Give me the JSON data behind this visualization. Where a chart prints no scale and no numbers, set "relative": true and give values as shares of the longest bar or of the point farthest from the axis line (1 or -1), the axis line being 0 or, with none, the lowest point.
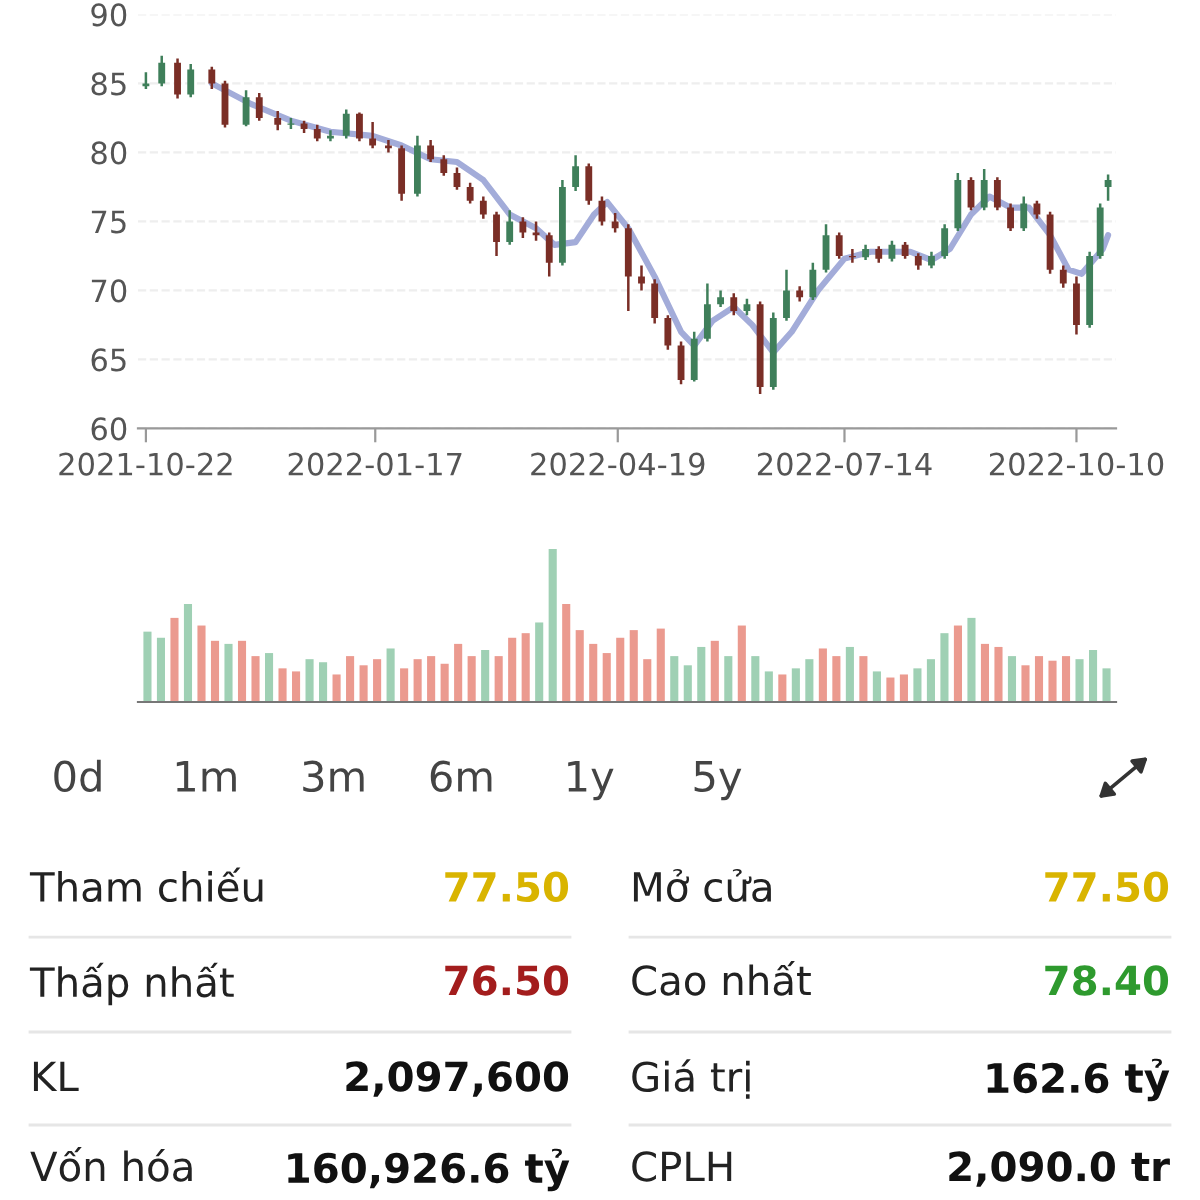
{
  "chart_data": [
    {
      "type": "candlestick",
      "xlim": [
        "2021-10-19",
        "2022-10-25"
      ],
      "ylim": [
        60,
        90
      ],
      "yticks": [
        60,
        65,
        70,
        75,
        80,
        85,
        90
      ],
      "xticks": [
        "2021-10-22",
        "2022-01-17",
        "2022-04-19",
        "2022-07-14",
        "2022-10-10"
      ],
      "grid": "y",
      "x": [
        "2021-10-22",
        "2021-10-28",
        "2021-11-03",
        "2021-11-08",
        "2021-11-16",
        "2021-11-21",
        "2021-11-29",
        "2021-12-04",
        "2021-12-11",
        "2021-12-16",
        "2021-12-21",
        "2021-12-26",
        "2021-12-31",
        "2022-01-06",
        "2022-01-11",
        "2022-01-16",
        "2022-01-22",
        "2022-01-27",
        "2022-02-02",
        "2022-02-07",
        "2022-02-12",
        "2022-02-17",
        "2022-02-22",
        "2022-02-27",
        "2022-03-04",
        "2022-03-09",
        "2022-03-14",
        "2022-03-19",
        "2022-03-24",
        "2022-03-29",
        "2022-04-03",
        "2022-04-08",
        "2022-04-13",
        "2022-04-18",
        "2022-04-23",
        "2022-04-28",
        "2022-05-03",
        "2022-05-08",
        "2022-05-13",
        "2022-05-18",
        "2022-05-23",
        "2022-05-28",
        "2022-06-02",
        "2022-06-07",
        "2022-06-12",
        "2022-06-17",
        "2022-06-22",
        "2022-06-27",
        "2022-07-02",
        "2022-07-07",
        "2022-07-12",
        "2022-07-17",
        "2022-07-22",
        "2022-07-27",
        "2022-08-01",
        "2022-08-06",
        "2022-08-11",
        "2022-08-16",
        "2022-08-21",
        "2022-08-26",
        "2022-08-31",
        "2022-09-05",
        "2022-09-10",
        "2022-09-15",
        "2022-09-20",
        "2022-09-25",
        "2022-09-30",
        "2022-10-05",
        "2022-10-10",
        "2022-10-15",
        "2022-10-19",
        "2022-10-22"
      ],
      "ohlc": [
        [
          84.8,
          85.8,
          84.6,
          85.0
        ],
        [
          85.0,
          87.0,
          84.8,
          86.5
        ],
        [
          86.5,
          86.8,
          83.9,
          84.2
        ],
        [
          84.2,
          86.4,
          84.0,
          86.0
        ],
        [
          86.0,
          86.2,
          84.6,
          85.0
        ],
        [
          85.0,
          85.2,
          81.8,
          82.0
        ],
        [
          82.0,
          84.5,
          81.9,
          84.0
        ],
        [
          84.0,
          84.3,
          82.3,
          82.5
        ],
        [
          82.5,
          83.0,
          81.6,
          82.0
        ],
        [
          82.0,
          82.5,
          81.7,
          82.1
        ],
        [
          82.1,
          82.3,
          81.4,
          81.7
        ],
        [
          81.7,
          82.0,
          80.8,
          81.0
        ],
        [
          81.0,
          81.6,
          80.8,
          81.2
        ],
        [
          81.2,
          83.1,
          81.0,
          82.8
        ],
        [
          82.8,
          82.9,
          80.8,
          81.0
        ],
        [
          81.0,
          82.2,
          80.3,
          80.5
        ],
        [
          80.5,
          80.9,
          80.0,
          80.3
        ],
        [
          80.3,
          80.5,
          76.5,
          77.0
        ],
        [
          77.0,
          81.2,
          76.8,
          80.5
        ],
        [
          80.5,
          80.9,
          79.3,
          79.5
        ],
        [
          79.5,
          79.8,
          78.3,
          78.5
        ],
        [
          78.5,
          78.9,
          77.3,
          77.5
        ],
        [
          77.5,
          77.8,
          76.3,
          76.5
        ],
        [
          76.5,
          76.8,
          75.2,
          75.5
        ],
        [
          75.5,
          75.7,
          72.5,
          73.5
        ],
        [
          73.5,
          75.8,
          73.3,
          75.0
        ],
        [
          75.0,
          75.3,
          73.8,
          74.2
        ],
        [
          74.2,
          75.0,
          73.6,
          74.0
        ],
        [
          74.0,
          74.2,
          71.0,
          72.0
        ],
        [
          72.0,
          78.0,
          71.8,
          77.5
        ],
        [
          77.5,
          79.8,
          77.2,
          79.0
        ],
        [
          79.0,
          79.2,
          76.2,
          76.5
        ],
        [
          76.5,
          76.8,
          74.7,
          75.0
        ],
        [
          75.0,
          75.6,
          74.2,
          74.5
        ],
        [
          74.5,
          74.8,
          68.5,
          71.0
        ],
        [
          71.0,
          71.8,
          70.0,
          70.5
        ],
        [
          70.5,
          70.8,
          67.6,
          68.0
        ],
        [
          68.0,
          68.2,
          65.7,
          66.0
        ],
        [
          66.0,
          66.3,
          63.2,
          63.5
        ],
        [
          63.5,
          67.0,
          63.4,
          66.5
        ],
        [
          66.5,
          70.5,
          66.3,
          69.0
        ],
        [
          69.0,
          70.0,
          68.8,
          69.5
        ],
        [
          69.5,
          69.8,
          68.2,
          68.5
        ],
        [
          68.5,
          69.4,
          68.2,
          69.0
        ],
        [
          69.0,
          69.2,
          62.5,
          63.0
        ],
        [
          63.0,
          68.4,
          62.8,
          68.0
        ],
        [
          68.0,
          71.5,
          67.8,
          70.0
        ],
        [
          70.0,
          70.3,
          69.2,
          69.5
        ],
        [
          69.5,
          72.0,
          69.3,
          71.5
        ],
        [
          71.5,
          74.8,
          71.3,
          74.0
        ],
        [
          74.0,
          74.2,
          72.3,
          72.5
        ],
        [
          72.5,
          73.0,
          72.0,
          72.4
        ],
        [
          72.4,
          73.3,
          72.2,
          73.0
        ],
        [
          73.0,
          73.2,
          72.0,
          72.3
        ],
        [
          72.3,
          73.6,
          72.1,
          73.3
        ],
        [
          73.3,
          73.5,
          72.3,
          72.5
        ],
        [
          72.5,
          72.7,
          71.5,
          71.8
        ],
        [
          71.8,
          72.8,
          71.6,
          72.5
        ],
        [
          72.5,
          74.8,
          72.3,
          74.5
        ],
        [
          74.5,
          78.5,
          74.3,
          78.0
        ],
        [
          78.0,
          78.2,
          75.8,
          76.0
        ],
        [
          76.0,
          78.8,
          75.8,
          78.0
        ],
        [
          78.0,
          78.2,
          75.8,
          76.0
        ],
        [
          76.0,
          76.3,
          74.3,
          74.5
        ],
        [
          74.5,
          76.8,
          74.3,
          76.3
        ],
        [
          76.3,
          76.5,
          75.2,
          75.5
        ],
        [
          75.5,
          75.7,
          71.2,
          71.5
        ],
        [
          71.5,
          71.8,
          70.2,
          70.5
        ],
        [
          70.5,
          71.0,
          66.8,
          67.5
        ],
        [
          67.5,
          72.8,
          67.3,
          72.5
        ],
        [
          72.5,
          76.3,
          72.3,
          76.0
        ],
        [
          77.5,
          78.4,
          76.5,
          78.0
        ]
      ],
      "colors": [
        "#3f7f5a",
        "#3f7f5a",
        "#7a2e26",
        "#3f7f5a",
        "#7a2e26",
        "#7a2e26",
        "#3f7f5a",
        "#7a2e26",
        "#7a2e26",
        "#3f7f5a",
        "#7a2e26",
        "#7a2e26",
        "#3f7f5a",
        "#3f7f5a",
        "#7a2e26",
        "#7a2e26",
        "#7a2e26",
        "#7a2e26",
        "#3f7f5a",
        "#7a2e26",
        "#7a2e26",
        "#7a2e26",
        "#7a2e26",
        "#7a2e26",
        "#7a2e26",
        "#3f7f5a",
        "#7a2e26",
        "#7a2e26",
        "#7a2e26",
        "#3f7f5a",
        "#3f7f5a",
        "#7a2e26",
        "#7a2e26",
        "#7a2e26",
        "#7a2e26",
        "#7a2e26",
        "#7a2e26",
        "#7a2e26",
        "#7a2e26",
        "#3f7f5a",
        "#3f7f5a",
        "#3f7f5a",
        "#7a2e26",
        "#3f7f5a",
        "#7a2e26",
        "#3f7f5a",
        "#3f7f5a",
        "#7a2e26",
        "#3f7f5a",
        "#3f7f5a",
        "#7a2e26",
        "#7a2e26",
        "#3f7f5a",
        "#7a2e26",
        "#3f7f5a",
        "#7a2e26",
        "#7a2e26",
        "#3f7f5a",
        "#3f7f5a",
        "#3f7f5a",
        "#7a2e26",
        "#3f7f5a",
        "#7a2e26",
        "#7a2e26",
        "#3f7f5a",
        "#7a2e26",
        "#7a2e26",
        "#7a2e26",
        "#7a2e26",
        "#3f7f5a",
        "#3f7f5a",
        "#3f7f5a"
      ],
      "series": [
        {
          "type": "line",
          "color": "#a3acd9",
          "x": [
            "2021-11-16",
            "2021-12-01",
            "2021-12-16",
            "2021-12-31",
            "2022-01-16",
            "2022-01-27",
            "2022-02-07",
            "2022-02-17",
            "2022-02-27",
            "2022-03-09",
            "2022-03-19",
            "2022-03-26",
            "2022-04-03",
            "2022-04-10",
            "2022-04-15",
            "2022-04-23",
            "2022-05-03",
            "2022-05-13",
            "2022-05-18",
            "2022-05-25",
            "2022-06-02",
            "2022-06-09",
            "2022-06-17",
            "2022-06-24",
            "2022-07-04",
            "2022-07-14",
            "2022-07-24",
            "2022-08-08",
            "2022-08-16",
            "2022-08-23",
            "2022-08-31",
            "2022-09-07",
            "2022-09-15",
            "2022-09-22",
            "2022-09-30",
            "2022-10-07",
            "2022-10-12",
            "2022-10-20",
            "2022-10-22"
          ],
          "values": [
            85.0,
            83.5,
            82.3,
            81.5,
            81.2,
            80.5,
            79.5,
            79.3,
            78.0,
            75.5,
            74.5,
            73.3,
            73.5,
            75.5,
            76.4,
            74.5,
            71.0,
            67.0,
            66.0,
            67.8,
            68.8,
            67.5,
            65.5,
            67.0,
            70.0,
            72.3,
            72.8,
            72.8,
            72.2,
            73.0,
            75.5,
            76.8,
            76.0,
            76.0,
            74.0,
            71.5,
            71.2,
            73.0,
            74.0
          ]
        }
      ]
    },
    {
      "type": "bar",
      "relative": true,
      "categories": [
        null,
        null,
        null,
        null,
        null,
        null,
        null,
        null,
        null,
        null,
        null,
        null,
        null,
        null,
        null,
        null,
        null,
        null,
        null,
        null,
        null,
        null,
        null,
        null,
        null,
        null,
        null,
        null,
        null,
        null,
        null,
        null,
        null,
        null,
        null,
        null,
        null,
        null,
        null,
        null,
        null,
        null,
        null,
        null,
        null,
        null,
        null,
        null,
        null,
        null,
        null,
        null,
        null,
        null,
        null,
        null,
        null,
        null,
        null,
        null,
        null,
        null,
        null,
        null,
        null,
        null,
        null,
        null,
        null,
        null,
        null,
        null
      ],
      "values": [
        0.46,
        0.42,
        0.55,
        0.64,
        0.5,
        0.4,
        0.38,
        0.4,
        0.3,
        0.32,
        0.22,
        0.2,
        0.28,
        0.26,
        0.18,
        0.3,
        0.24,
        0.28,
        0.35,
        0.22,
        0.28,
        0.3,
        0.25,
        0.38,
        0.3,
        0.34,
        0.3,
        0.42,
        0.45,
        0.52,
        1.0,
        0.64,
        0.47,
        0.38,
        0.32,
        0.42,
        0.47,
        0.28,
        0.48,
        0.3,
        0.24,
        0.36,
        0.4,
        0.3,
        0.5,
        0.3,
        0.2,
        0.18,
        0.22,
        0.28,
        0.35,
        0.3,
        0.36,
        0.3,
        0.2,
        0.16,
        0.18,
        0.22,
        0.28,
        0.45,
        0.5,
        0.55,
        0.38,
        0.36,
        0.3,
        0.24,
        0.3,
        0.27,
        0.3,
        0.28,
        0.34,
        0.22
      ],
      "colors": [
        "#9fd0b4",
        "#9fd0b4",
        "#eb9a8f",
        "#9fd0b4",
        "#eb9a8f",
        "#eb9a8f",
        "#9fd0b4",
        "#eb9a8f",
        "#eb9a8f",
        "#9fd0b4",
        "#eb9a8f",
        "#eb9a8f",
        "#9fd0b4",
        "#9fd0b4",
        "#eb9a8f",
        "#eb9a8f",
        "#eb9a8f",
        "#eb9a8f",
        "#9fd0b4",
        "#eb9a8f",
        "#eb9a8f",
        "#eb9a8f",
        "#eb9a8f",
        "#eb9a8f",
        "#eb9a8f",
        "#9fd0b4",
        "#eb9a8f",
        "#eb9a8f",
        "#eb9a8f",
        "#9fd0b4",
        "#9fd0b4",
        "#eb9a8f",
        "#eb9a8f",
        "#eb9a8f",
        "#eb9a8f",
        "#eb9a8f",
        "#eb9a8f",
        "#eb9a8f",
        "#eb9a8f",
        "#9fd0b4",
        "#9fd0b4",
        "#9fd0b4",
        "#eb9a8f",
        "#9fd0b4",
        "#eb9a8f",
        "#9fd0b4",
        "#9fd0b4",
        "#eb9a8f",
        "#9fd0b4",
        "#9fd0b4",
        "#eb9a8f",
        "#eb9a8f",
        "#9fd0b4",
        "#eb9a8f",
        "#9fd0b4",
        "#eb9a8f",
        "#eb9a8f",
        "#9fd0b4",
        "#9fd0b4",
        "#9fd0b4",
        "#eb9a8f",
        "#9fd0b4",
        "#eb9a8f",
        "#eb9a8f",
        "#9fd0b4",
        "#eb9a8f",
        "#eb9a8f",
        "#eb9a8f",
        "#eb9a8f",
        "#9fd0b4",
        "#9fd0b4",
        "#9fd0b4"
      ]
    },
    {
      "type": "other",
      "annotations": [
        "0d",
        "1m",
        "3m",
        "6m",
        "1y",
        "5y"
      ]
    },
    {
      "type": "other",
      "annotations": [
        "Tham chiếu",
        "77.50",
        "Mở cửa",
        "77.50",
        "Thấp nhất",
        "76.50",
        "Cao nhất",
        "78.40",
        "KL",
        "2,097,600",
        "Giá trị",
        "162.6 tỷ",
        "Vốn hóa",
        "160,926.6 tỷ",
        "CPLH",
        "2,090.0 tr"
      ],
      "colors": [
        "#222222",
        "#d9b400",
        "#222222",
        "#d9b400",
        "#222222",
        "#a31d1d",
        "#222222",
        "#2e9a2e",
        "#222222",
        "#111111",
        "#222222",
        "#111111",
        "#222222",
        "#111111",
        "#222222",
        "#111111"
      ]
    }
  ]
}
